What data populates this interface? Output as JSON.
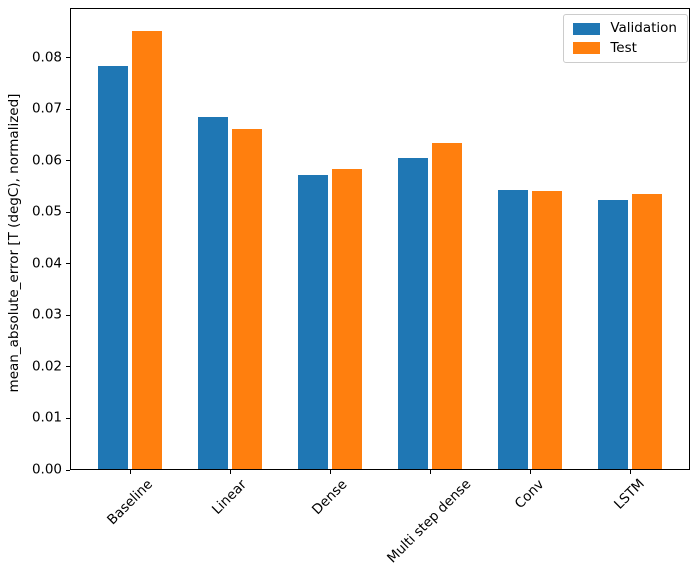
{
  "figure": {
    "background": "#ffffff"
  },
  "chart_data": {
    "type": "bar",
    "title": "",
    "categories": [
      "Baseline",
      "Linear",
      "Dense",
      "Multi step dense",
      "Conv",
      "LSTM"
    ],
    "series": [
      {
        "name": "Validation",
        "color": "#1f77b4",
        "values": [
          0.0785,
          0.0686,
          0.0572,
          0.0606,
          0.0544,
          0.0525
        ]
      },
      {
        "name": "Test",
        "color": "#ff7f0e",
        "values": [
          0.0852,
          0.0663,
          0.0584,
          0.0634,
          0.0542,
          0.0535
        ]
      }
    ],
    "xlabel": "",
    "ylabel": "mean_absolute_error [T (degC), normalized]",
    "yticks": [
      0.0,
      0.01,
      0.02,
      0.03,
      0.04,
      0.05,
      0.06,
      0.07,
      0.08
    ],
    "ytick_labels": [
      "0.00",
      "0.01",
      "0.02",
      "0.03",
      "0.04",
      "0.05",
      "0.06",
      "0.07",
      "0.08"
    ],
    "ylim": [
      0,
      0.0897
    ],
    "xtick_rotation_deg": 45,
    "bar_width": 0.3,
    "bar_offsets": [
      -0.17,
      0.17
    ],
    "grid": false,
    "legend_position": "upper right",
    "axis_color": "#000000",
    "legend_border_color": "#cccccc"
  }
}
